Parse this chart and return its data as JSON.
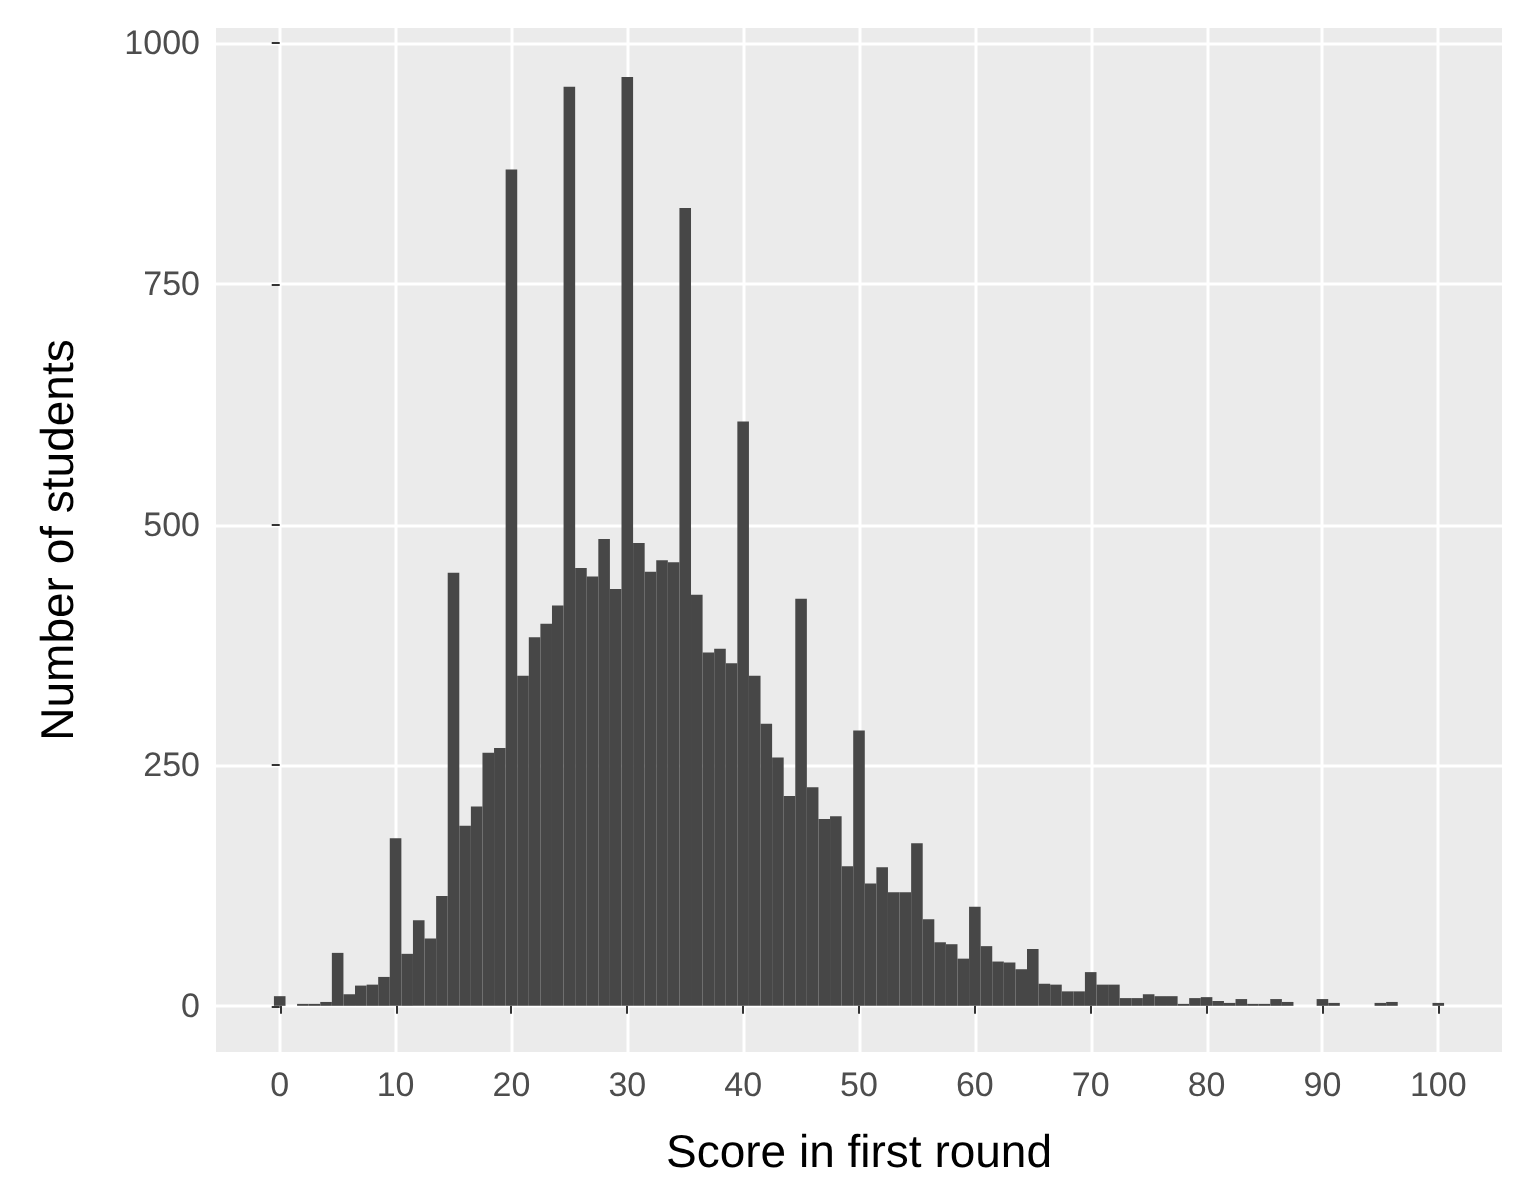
{
  "chart_data": {
    "type": "histogram",
    "xlabel": "Score in first round",
    "ylabel": "Number of students",
    "bins": [
      -0.5,
      0.5,
      1.5,
      2.5,
      3.5,
      4.5,
      5.5,
      6.5,
      7.5,
      8.5,
      9.5,
      10.5,
      11.5,
      12.5,
      13.5,
      14.5,
      15.5,
      16.5,
      17.5,
      18.5,
      19.5,
      20.5,
      21.5,
      22.5,
      23.5,
      24.5,
      25.5,
      26.5,
      27.5,
      28.5,
      29.5,
      30.5,
      31.5,
      32.5,
      33.5,
      34.5,
      35.5,
      36.5,
      37.5,
      38.5,
      39.5,
      40.5,
      41.5,
      42.5,
      43.5,
      44.5,
      45.5,
      46.5,
      47.5,
      48.5,
      49.5,
      50.5,
      51.5,
      52.5,
      53.5,
      54.5,
      55.5,
      56.5,
      57.5,
      58.5,
      59.5,
      60.5,
      61.5,
      62.5,
      63.5,
      64.5,
      65.5,
      66.5,
      67.5,
      68.5,
      69.5,
      70.5,
      71.5,
      72.5,
      73.5,
      74.5,
      75.5,
      76.5,
      77.5,
      78.5,
      79.5,
      80.5,
      81.5,
      82.5,
      83.5,
      84.5,
      85.5,
      86.5,
      87.5,
      88.5,
      89.5,
      90.5,
      91.5,
      92.5,
      93.5,
      94.5,
      95.5,
      96.5,
      97.5,
      98.5,
      99.5,
      100.5
    ],
    "values": [
      10,
      0,
      2,
      2,
      4,
      55,
      12,
      21,
      22,
      30,
      174,
      54,
      89,
      70,
      114,
      450,
      187,
      207,
      263,
      268,
      869,
      343,
      383,
      397,
      416,
      955,
      455,
      446,
      485,
      433,
      965,
      481,
      451,
      463,
      461,
      829,
      427,
      367,
      371,
      356,
      607,
      343,
      293,
      258,
      218,
      423,
      227,
      194,
      197,
      145,
      286,
      127,
      144,
      118,
      118,
      169,
      90,
      66,
      64,
      49,
      103,
      62,
      46,
      45,
      38,
      59,
      23,
      22,
      15,
      15,
      35,
      22,
      22,
      8,
      8,
      12,
      10,
      10,
      2,
      8,
      9,
      5,
      3,
      7,
      2,
      2,
      7,
      4,
      0,
      0,
      7,
      3,
      0,
      0,
      0,
      3,
      4,
      0,
      0,
      0,
      3
    ],
    "color": "#474747",
    "xlim": [
      -5.5,
      105.5
    ],
    "xticks": [
      0,
      10,
      20,
      30,
      40,
      50,
      60,
      70,
      80,
      90,
      100
    ],
    "ylim": [
      -48,
      1016
    ],
    "yticks": [
      0,
      250,
      500,
      750,
      1000
    ],
    "grid": true
  }
}
